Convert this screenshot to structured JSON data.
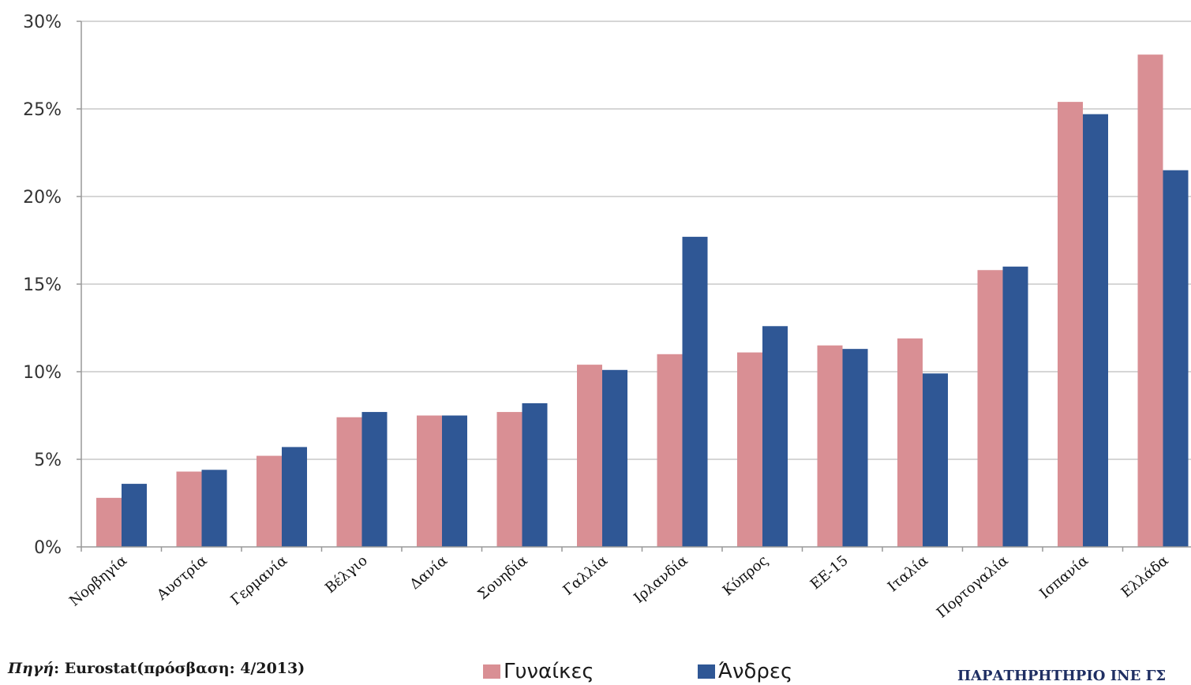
{
  "chart_data": {
    "type": "bar",
    "categories": [
      "Νορβηγία",
      "Αυστρία",
      "Γερμανία",
      "Βέλγιο",
      "Δανία",
      "Σουηδία",
      "Γαλλία",
      "Ιρλανδία",
      "Κύπρος",
      "ΕΕ-15",
      "Ιταλία",
      "Πορτογαλία",
      "Ισπανία",
      "Ελλάδα"
    ],
    "series": [
      {
        "name": "Γυναίκες",
        "color": "#d98f94",
        "values": [
          2.8,
          4.3,
          5.2,
          7.4,
          7.5,
          7.7,
          10.4,
          11.0,
          11.1,
          11.5,
          11.9,
          15.8,
          25.4,
          28.1
        ]
      },
      {
        "name": "Άνδρες",
        "color": "#2f5795",
        "values": [
          3.6,
          4.4,
          5.7,
          7.7,
          7.5,
          8.2,
          10.1,
          17.7,
          12.6,
          11.3,
          9.9,
          16.0,
          24.7,
          21.5
        ]
      }
    ],
    "yticks": [
      "0%",
      "5%",
      "10%",
      "15%",
      "20%",
      "25%",
      "30%"
    ],
    "ylim": [
      0,
      30
    ],
    "grid": true,
    "legend_position": "bottom"
  },
  "source": {
    "label": "Πηγή",
    "text": ": Eurostat(πρόσβαση: 4/2013)"
  },
  "legend": {
    "women": "Γυναίκες",
    "men": "Άνδρες"
  },
  "footer": {
    "org": "ΠΑΡΑΤΗΡΗΤΗΡΙΟ ΙΝΕ ΓΣ"
  }
}
